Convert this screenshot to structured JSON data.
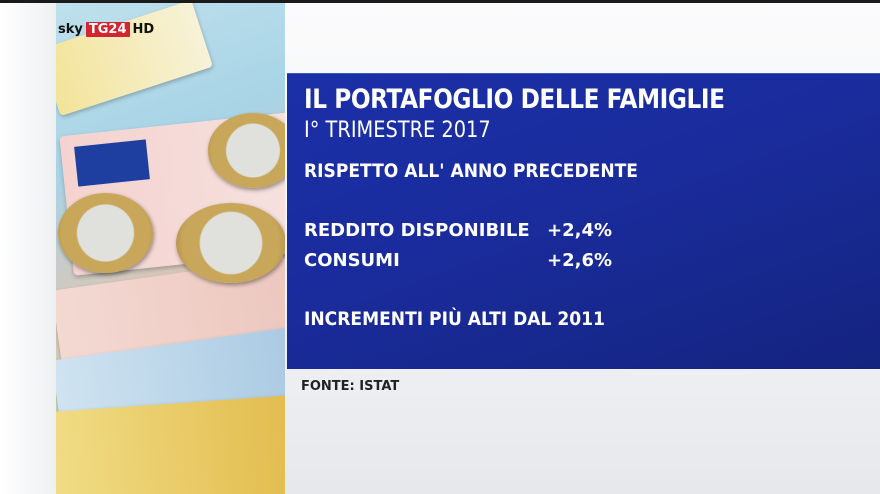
{
  "channel_logo": {
    "sky": "sky",
    "tg": "TG24",
    "hd": "HD"
  },
  "panel": {
    "title": "IL PORTAFOGLIO DELLE FAMIGLIE",
    "subtitle": "I° TRIMESTRE 2017",
    "comparison": "RISPETTO ALL' ANNO PRECEDENTE",
    "rows": [
      {
        "label": "REDDITO DISPONIBILE",
        "value": "+2,4%"
      },
      {
        "label": "CONSUMI",
        "value": "+2,6%"
      }
    ],
    "note": "INCREMENTI PIÙ ALTI DAL 2011"
  },
  "source": "FONTE: ISTAT",
  "colors": {
    "panel": "#1b2fa8",
    "logo_red": "#d4242f"
  }
}
